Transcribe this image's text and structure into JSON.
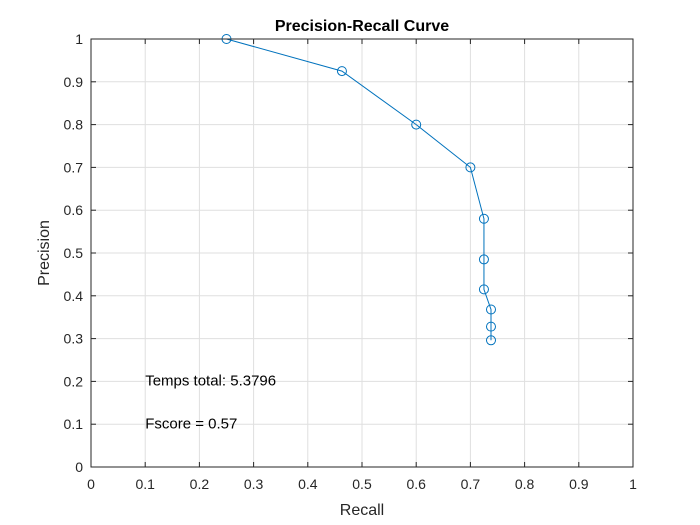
{
  "chart_data": {
    "type": "line",
    "title": "Precision-Recall Curve",
    "xlabel": "Recall",
    "ylabel": "Precision",
    "xlim": [
      0,
      1
    ],
    "ylim": [
      0,
      1
    ],
    "xticks": [
      0,
      0.1,
      0.2,
      0.3,
      0.4,
      0.5,
      0.6,
      0.7,
      0.8,
      0.9,
      1
    ],
    "yticks": [
      0,
      0.1,
      0.2,
      0.3,
      0.4,
      0.5,
      0.6,
      0.7,
      0.8,
      0.9,
      1
    ],
    "xtick_labels": [
      "0",
      "0.1",
      "0.2",
      "0.3",
      "0.4",
      "0.5",
      "0.6",
      "0.7",
      "0.8",
      "0.9",
      "1"
    ],
    "ytick_labels": [
      "0",
      "0.1",
      "0.2",
      "0.3",
      "0.4",
      "0.5",
      "0.6",
      "0.7",
      "0.8",
      "0.9",
      "1"
    ],
    "grid": true,
    "marker": "circle",
    "series": [
      {
        "color": "#0072BD",
        "x": [
          0.25,
          0.463,
          0.6,
          0.7,
          0.725,
          0.725,
          0.725,
          0.738,
          0.738,
          0.738
        ],
        "y": [
          1.0,
          0.925,
          0.8,
          0.7,
          0.58,
          0.485,
          0.415,
          0.368,
          0.328,
          0.296
        ]
      }
    ],
    "annotations": [
      {
        "text": "Temps total: 5.3796",
        "x": 0.1,
        "y": 0.19
      },
      {
        "text": "Fscore = 0.57",
        "x": 0.1,
        "y": 0.09
      }
    ]
  },
  "colors": {
    "axis": "#262626",
    "grid": "#dfdfdf",
    "line": "#0072BD"
  }
}
